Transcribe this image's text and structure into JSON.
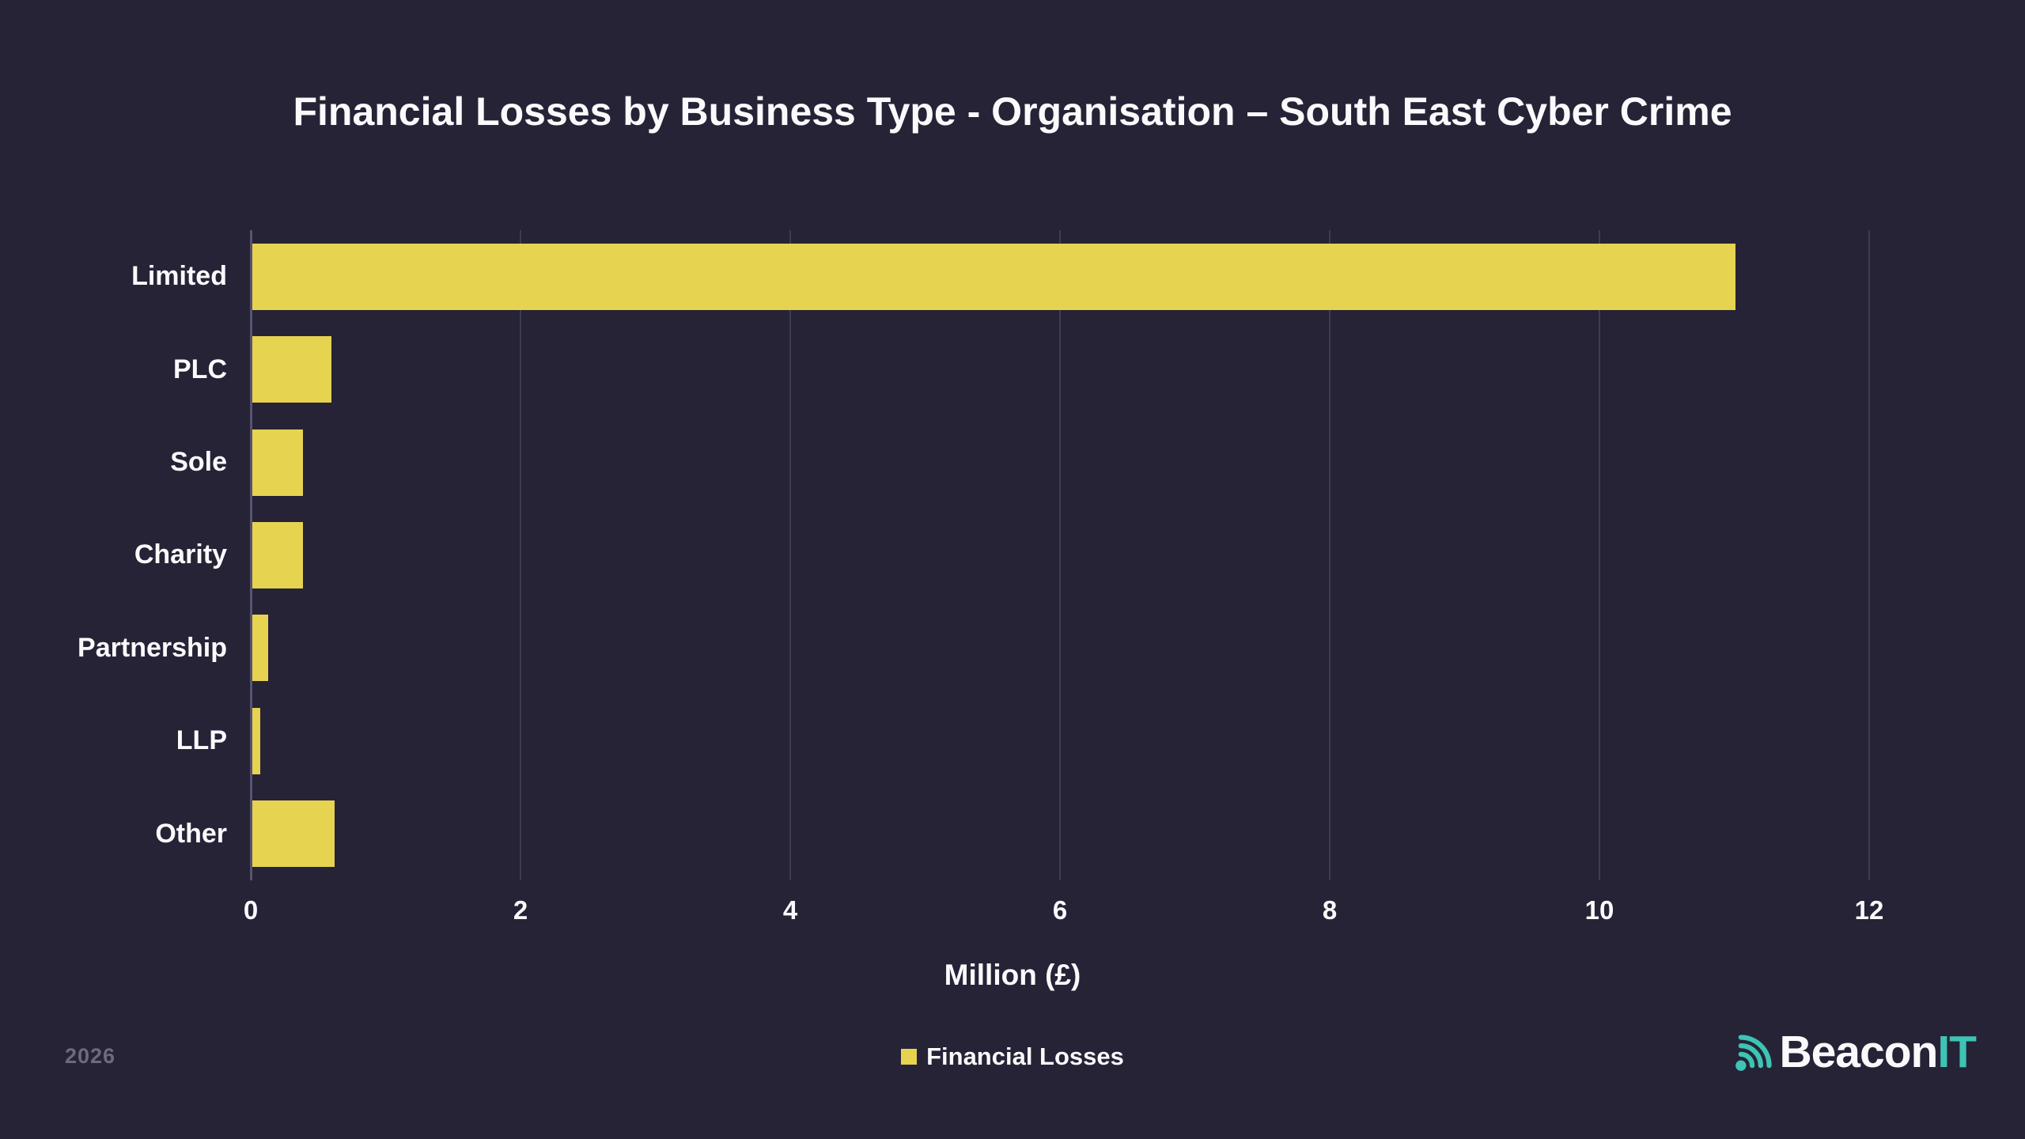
{
  "title": "Financial Losses by Business Type - Organisation – South East Cyber Crime",
  "colors": {
    "background": "#262337",
    "bar": "#e6d350",
    "grid": "#3e3b54",
    "axis": "#575371",
    "text": "#fafafc",
    "muted_text": "#6c6980",
    "teal": "#3ec3b4"
  },
  "chart_data": {
    "type": "bar",
    "orientation": "horizontal",
    "title": "Financial Losses by Business Type - Organisation – South East Cyber Crime",
    "categories": [
      "Limited",
      "PLC",
      "Sole",
      "Charity",
      "Partnership",
      "LLP",
      "Other"
    ],
    "series": [
      {
        "name": "Financial Losses",
        "values": [
          11.0,
          0.59,
          0.38,
          0.38,
          0.12,
          0.06,
          0.61
        ]
      }
    ],
    "xlabel": "Million (£)",
    "xticks": [
      0,
      2,
      4,
      6,
      8,
      10,
      12
    ],
    "xlim": [
      0,
      12.4
    ],
    "grid": true,
    "legend_position": "bottom"
  },
  "legend": {
    "label": "Financial Losses"
  },
  "footer": {
    "year": "2026",
    "brand_primary": "Beacon",
    "brand_secondary": "IT"
  }
}
